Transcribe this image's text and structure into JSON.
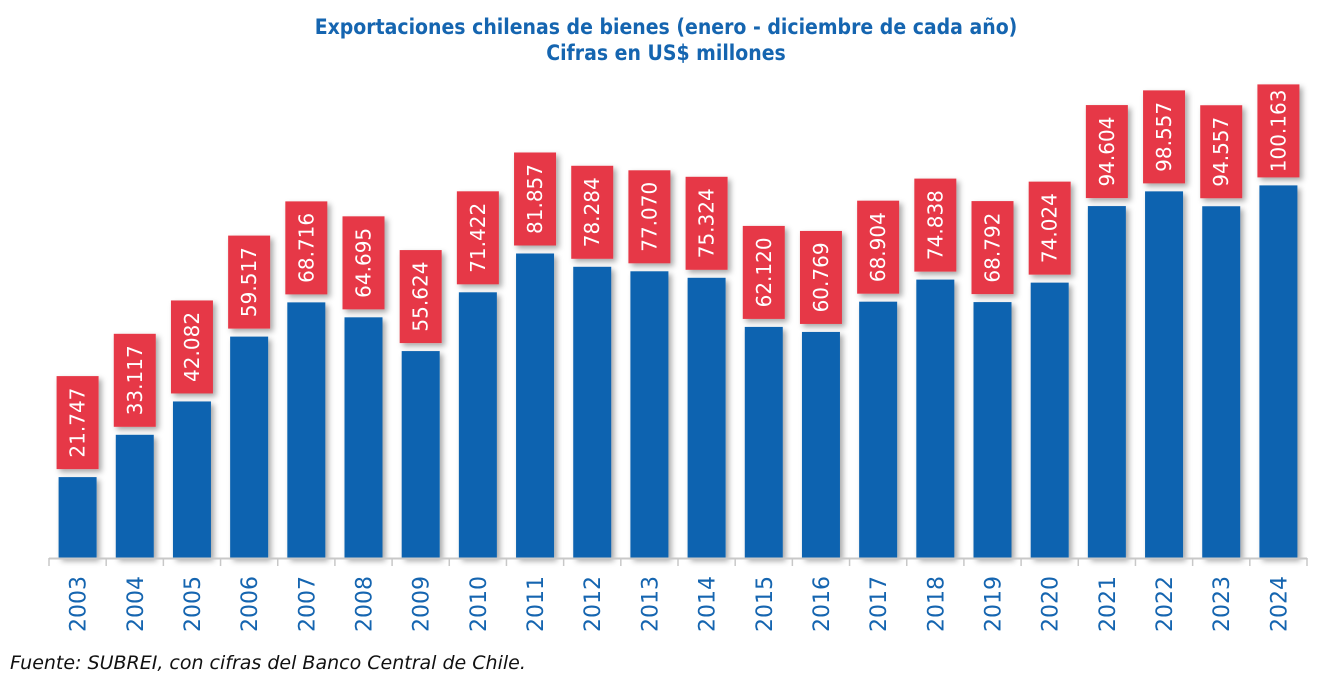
{
  "chart_data": {
    "type": "bar",
    "title": "Exportaciones chilenas de bienes (enero - diciembre de cada año)",
    "subtitle": "Cifras en US$ millones",
    "xlabel": "",
    "ylabel": "",
    "ylim": [
      0,
      125
    ],
    "grid": false,
    "legend": "none",
    "categories": [
      "2003",
      "2004",
      "2005",
      "2006",
      "2007",
      "2008",
      "2009",
      "2010",
      "2011",
      "2012",
      "2013",
      "2014",
      "2015",
      "2016",
      "2017",
      "2018",
      "2019",
      "2020",
      "2021",
      "2022",
      "2023",
      "2024"
    ],
    "values": [
      21.747,
      33.117,
      42.082,
      59.517,
      68.716,
      64.695,
      55.624,
      71.422,
      81.857,
      78.284,
      77.07,
      75.324,
      62.12,
      60.769,
      68.904,
      74.838,
      68.792,
      74.024,
      94.604,
      98.557,
      94.557,
      100.163
    ],
    "data_labels": [
      "21.747",
      "33.117",
      "42.082",
      "59.517",
      "68.716",
      "64.695",
      "55.624",
      "71.422",
      "81.857",
      "78.284",
      "77.070",
      "75.324",
      "62.120",
      "60.769",
      "68.904",
      "74.838",
      "68.792",
      "74.024",
      "94.604",
      "98.557",
      "94.557",
      "100.163"
    ],
    "source": "Fuente: SUBREI, con cifras del Banco Central de Chile."
  },
  "colors": {
    "bar": "#1064b0",
    "label_bg": "#e63946",
    "label_text": "#ffffff",
    "title": "#1565b0",
    "tick_text": "#1565b0",
    "axis": "#c8c8c8"
  }
}
